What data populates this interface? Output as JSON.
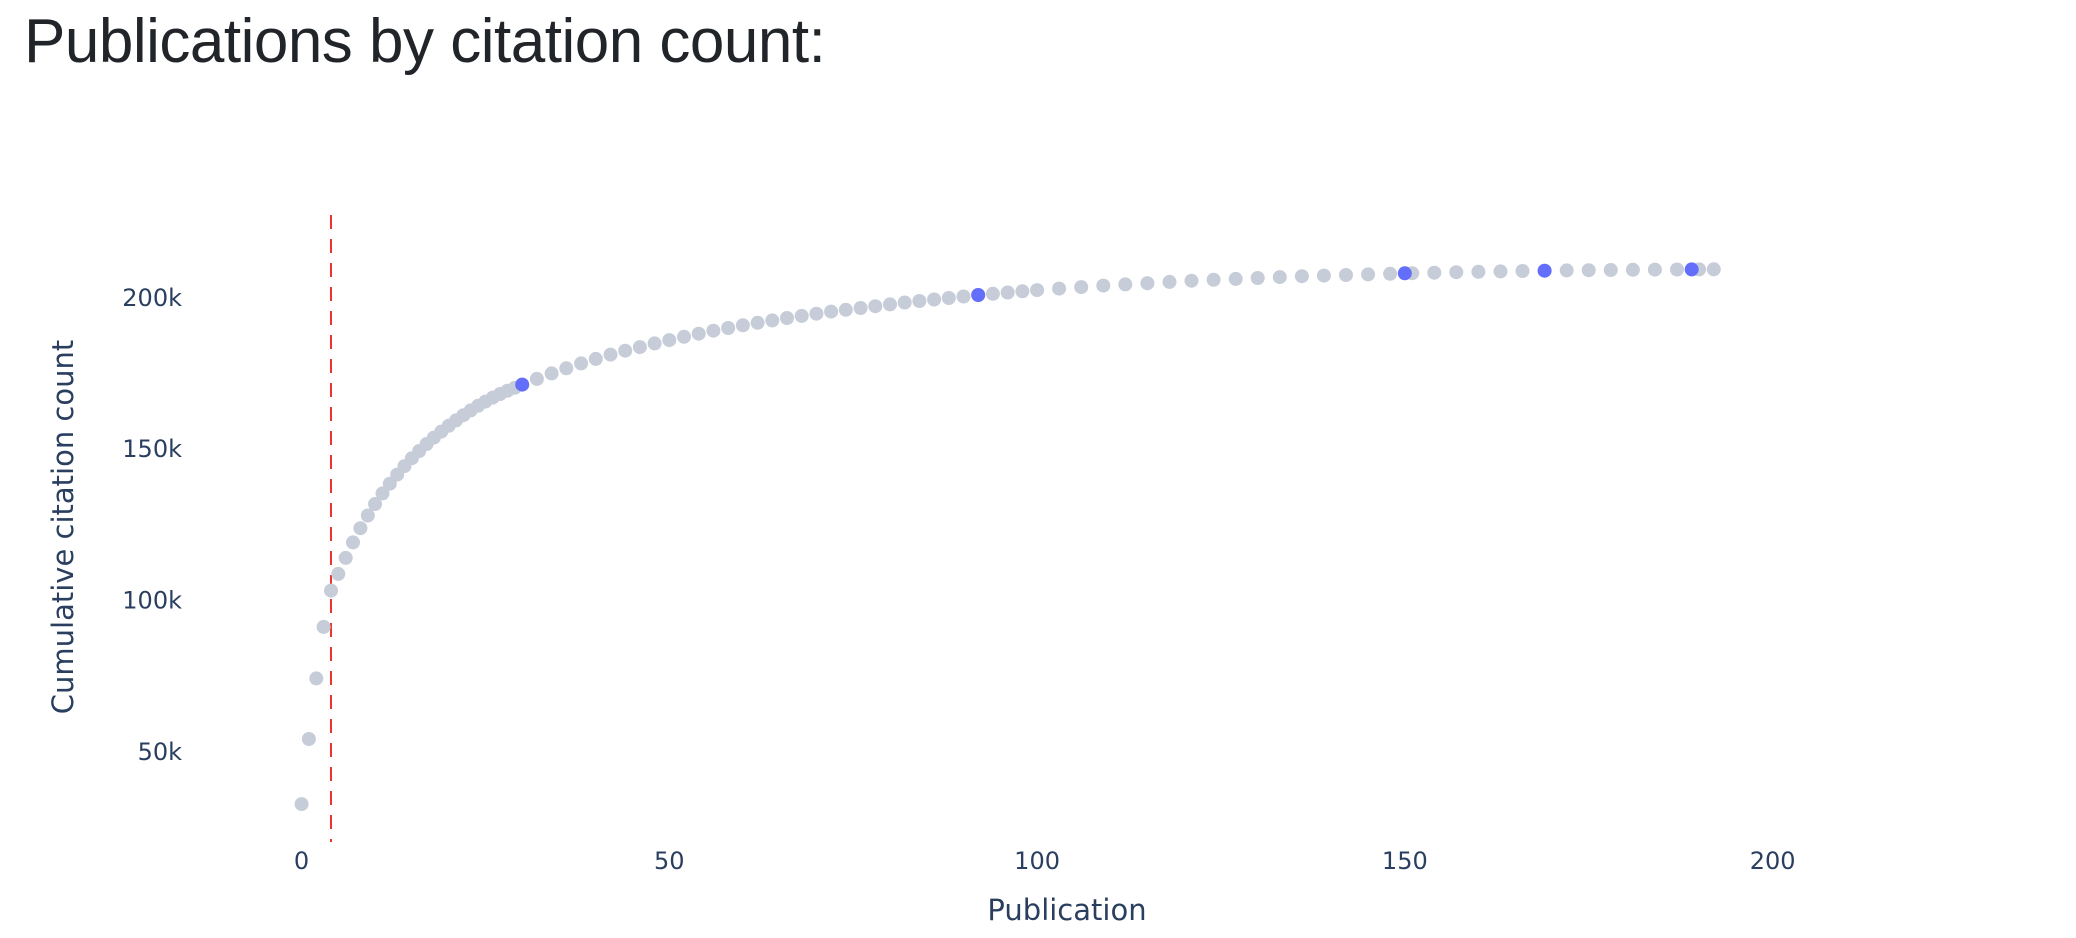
{
  "page": {
    "title": "Publications by citation count:"
  },
  "chart_data": {
    "type": "scatter",
    "xlabel": "Publication",
    "ylabel": "Cumulative citation count",
    "xlim": [
      -10,
      218
    ],
    "ylim": [
      20000,
      227000
    ],
    "x_ticks": [
      0,
      50,
      100,
      150,
      200
    ],
    "x_tick_labels": [
      "0",
      "50",
      "100",
      "150",
      "200"
    ],
    "y_ticks": [
      50000,
      100000,
      150000,
      200000
    ],
    "y_tick_labels": [
      "50k",
      "100k",
      "150k",
      "200k"
    ],
    "grid": false,
    "legend": "none",
    "reference_line": {
      "axis": "x",
      "value": 4,
      "style": "dashed",
      "color": "#e8342b"
    },
    "series": [
      {
        "values": [
          [
            0,
            32500
          ],
          [
            1,
            54000
          ],
          [
            2,
            74000
          ],
          [
            3,
            91000
          ],
          [
            4,
            103000
          ],
          [
            5,
            108500
          ],
          [
            6,
            113800
          ],
          [
            7,
            118900
          ],
          [
            8,
            123600
          ],
          [
            9,
            127800
          ],
          [
            10,
            131600
          ],
          [
            11,
            135100
          ],
          [
            12,
            138300
          ],
          [
            13,
            141300
          ],
          [
            14,
            144100
          ],
          [
            15,
            146700
          ],
          [
            16,
            149100
          ],
          [
            17,
            151400
          ],
          [
            18,
            153500
          ],
          [
            19,
            155500
          ],
          [
            20,
            157400
          ],
          [
            21,
            159200
          ],
          [
            22,
            160900
          ],
          [
            23,
            162500
          ],
          [
            24,
            164000
          ],
          [
            25,
            165400
          ],
          [
            26,
            166700
          ],
          [
            27,
            167900
          ],
          [
            28,
            169000
          ],
          [
            29,
            170000
          ],
          [
            30,
            171000
          ],
          [
            32,
            172900
          ],
          [
            34,
            174700
          ],
          [
            36,
            176400
          ],
          [
            38,
            178000
          ],
          [
            40,
            179500
          ],
          [
            42,
            180900
          ],
          [
            44,
            182200
          ],
          [
            46,
            183400
          ],
          [
            48,
            184600
          ],
          [
            50,
            185700
          ],
          [
            52,
            186800
          ],
          [
            54,
            187800
          ],
          [
            56,
            188800
          ],
          [
            58,
            189700
          ],
          [
            60,
            190600
          ],
          [
            62,
            191400
          ],
          [
            64,
            192200
          ],
          [
            66,
            193000
          ],
          [
            68,
            193700
          ],
          [
            70,
            194400
          ],
          [
            72,
            195100
          ],
          [
            74,
            195700
          ],
          [
            76,
            196300
          ],
          [
            78,
            196900
          ],
          [
            80,
            197500
          ],
          [
            82,
            198100
          ],
          [
            84,
            198600
          ],
          [
            86,
            199100
          ],
          [
            88,
            199600
          ],
          [
            90,
            200100
          ],
          [
            92,
            200600
          ],
          [
            94,
            201000
          ],
          [
            96,
            201400
          ],
          [
            98,
            201800
          ],
          [
            100,
            202200
          ],
          [
            103,
            202700
          ],
          [
            106,
            203200
          ],
          [
            109,
            203700
          ],
          [
            112,
            204100
          ],
          [
            115,
            204500
          ],
          [
            118,
            204900
          ],
          [
            121,
            205300
          ],
          [
            124,
            205600
          ],
          [
            127,
            205900
          ],
          [
            130,
            206200
          ],
          [
            133,
            206500
          ],
          [
            136,
            206800
          ],
          [
            139,
            207000
          ],
          [
            142,
            207200
          ],
          [
            145,
            207400
          ],
          [
            148,
            207600
          ],
          [
            151,
            207800
          ],
          [
            154,
            207950
          ],
          [
            157,
            208100
          ],
          [
            160,
            208250
          ],
          [
            163,
            208380
          ],
          [
            166,
            208500
          ],
          [
            169,
            208600
          ],
          [
            172,
            208700
          ],
          [
            175,
            208780
          ],
          [
            178,
            208850
          ],
          [
            181,
            208910
          ],
          [
            184,
            208960
          ],
          [
            187,
            209000
          ],
          [
            190,
            209040
          ],
          [
            192,
            209060
          ]
        ],
        "color": "#c6cdd8"
      },
      {
        "values": [
          [
            30,
            171000
          ],
          [
            92,
            200600
          ],
          [
            150,
            207750
          ],
          [
            169,
            208600
          ],
          [
            189,
            209030
          ]
        ],
        "color": "#636efa"
      }
    ]
  }
}
